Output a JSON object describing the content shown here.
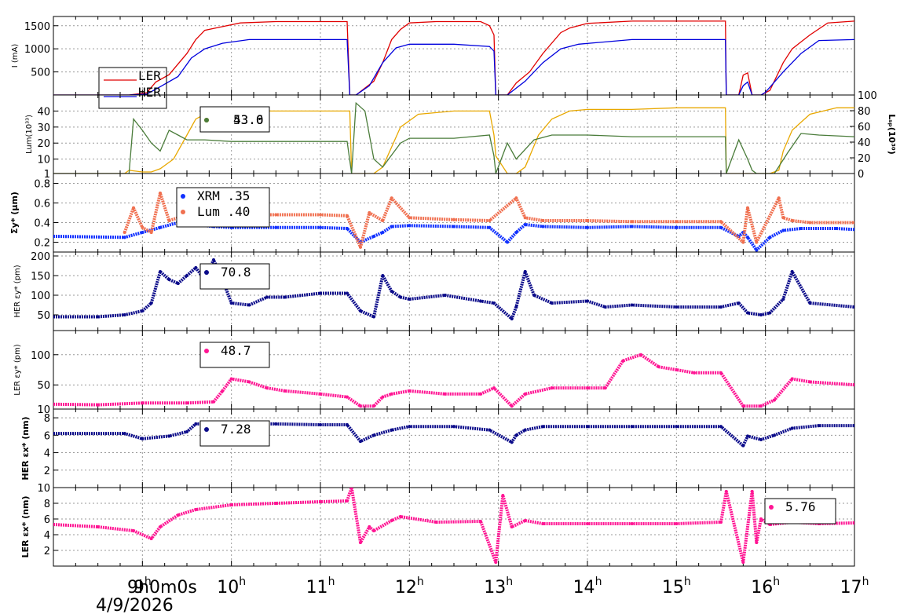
{
  "chart_data": [
    {
      "id": "current",
      "type": "line",
      "ylabel": "I (mA)",
      "yticks": [
        "500",
        "1000",
        "1500"
      ],
      "ylim": [
        0,
        1700
      ],
      "grid": true,
      "legend": {
        "placement": "bottom-left",
        "entries": [
          "LER",
          "HER"
        ]
      },
      "series": [
        {
          "name": "LER",
          "color": "#e00000",
          "x": [
            8.0,
            8.85,
            9.05,
            9.15,
            9.3,
            9.5,
            9.6,
            9.7,
            9.9,
            10.1,
            10.5,
            11.0,
            11.3,
            11.33,
            11.4,
            11.6,
            11.65,
            11.7,
            11.8,
            11.9,
            12.0,
            12.3,
            12.8,
            12.9,
            12.95,
            12.97,
            13.1,
            13.2,
            13.35,
            13.5,
            13.7,
            13.8,
            14.0,
            14.5,
            15.0,
            15.55,
            15.56,
            15.7,
            15.75,
            15.8,
            15.85,
            15.95,
            16.05,
            16.2,
            16.3,
            16.5,
            16.7,
            17.0
          ],
          "values": [
            0,
            0,
            50,
            280,
            440,
            900,
            1200,
            1400,
            1480,
            1560,
            1590,
            1590,
            1590,
            0,
            0,
            300,
            500,
            700,
            1200,
            1420,
            1560,
            1590,
            1590,
            1500,
            1300,
            0,
            0,
            260,
            500,
            900,
            1350,
            1450,
            1550,
            1600,
            1600,
            1600,
            0,
            0,
            430,
            480,
            0,
            0,
            100,
            700,
            1000,
            1300,
            1560,
            1600
          ]
        },
        {
          "name": "HER",
          "color": "#0000dd",
          "x": [
            8.0,
            8.85,
            9.05,
            9.2,
            9.4,
            9.55,
            9.7,
            9.9,
            10.2,
            10.5,
            11.0,
            11.3,
            11.33,
            11.4,
            11.55,
            11.7,
            11.85,
            12.0,
            12.5,
            12.9,
            12.95,
            12.97,
            13.1,
            13.3,
            13.5,
            13.7,
            13.9,
            14.5,
            15.0,
            15.55,
            15.56,
            15.7,
            15.75,
            15.8,
            15.85,
            15.95,
            16.0,
            16.2,
            16.4,
            16.6,
            17.0
          ],
          "values": [
            0,
            0,
            20,
            180,
            400,
            800,
            1000,
            1120,
            1200,
            1200,
            1200,
            1200,
            0,
            0,
            200,
            700,
            1020,
            1100,
            1100,
            1050,
            950,
            0,
            0,
            300,
            700,
            1000,
            1100,
            1200,
            1200,
            1200,
            0,
            0,
            200,
            280,
            0,
            0,
            60,
            500,
            900,
            1180,
            1200
          ]
        }
      ]
    },
    {
      "id": "luminosity",
      "type": "line",
      "ylabel": "Lum(10³³)",
      "ylabel_right": "Lₛₚ(10³⁰)",
      "yticks": [
        "1",
        "10",
        "20",
        "30",
        "40"
      ],
      "yticks_right": [
        "0",
        "20",
        "40",
        "60",
        "80",
        "100"
      ],
      "ylim": [
        1,
        50
      ],
      "grid": true,
      "legend": {
        "placement": "top-left",
        "entries": [
          "43.0",
          "53.6"
        ]
      },
      "series": [
        {
          "name": "43.0",
          "color": "#e8a800",
          "x": [
            8.0,
            8.8,
            8.85,
            9.0,
            9.1,
            9.2,
            9.35,
            9.5,
            9.6,
            9.7,
            9.8,
            10.0,
            10.5,
            11.0,
            11.33,
            11.35,
            11.4,
            11.6,
            11.7,
            11.9,
            12.1,
            12.5,
            12.9,
            12.95,
            12.97,
            13.1,
            13.2,
            13.3,
            13.45,
            13.6,
            13.8,
            14.0,
            14.5,
            15.0,
            15.55,
            15.56,
            15.8,
            16.05,
            16.15,
            16.2,
            16.3,
            16.5,
            16.8,
            17.0
          ],
          "values": [
            1,
            1,
            3,
            2,
            2,
            4,
            10,
            25,
            35,
            38,
            40,
            40,
            40,
            40,
            40,
            1,
            1,
            1,
            5,
            30,
            38,
            40,
            40,
            25,
            12,
            1,
            1,
            5,
            25,
            35,
            40,
            41,
            41,
            42,
            42,
            1,
            1,
            1,
            3,
            15,
            28,
            38,
            42,
            42
          ]
        },
        {
          "name": "53.6",
          "color": "#4a7c3a",
          "x": [
            8.0,
            8.85,
            8.9,
            9.0,
            9.1,
            9.2,
            9.3,
            9.4,
            9.5,
            9.7,
            10.0,
            10.5,
            11.0,
            11.3,
            11.35,
            11.4,
            11.5,
            11.6,
            11.7,
            11.9,
            12.0,
            12.5,
            12.9,
            12.95,
            12.97,
            13.1,
            13.2,
            13.4,
            13.6,
            14.0,
            14.5,
            15.0,
            15.55,
            15.56,
            15.7,
            15.8,
            15.85,
            15.9,
            16.1,
            16.25,
            16.4,
            16.6,
            17.0
          ],
          "values": [
            1,
            1,
            35,
            28,
            20,
            15,
            28,
            25,
            22,
            22,
            21,
            21,
            21,
            21,
            1,
            45,
            40,
            10,
            5,
            20,
            23,
            23,
            25,
            12,
            1,
            20,
            10,
            22,
            25,
            25,
            24,
            24,
            24,
            1,
            22,
            10,
            3,
            1,
            1,
            14,
            26,
            25,
            24
          ]
        }
      ]
    },
    {
      "id": "beamsize",
      "type": "scatter",
      "ylabel": "Σy* (µm)",
      "yticks": [
        "0.2",
        "0.4",
        "0.6",
        "0.8"
      ],
      "ylim": [
        0.1,
        0.9
      ],
      "grid": true,
      "legend": {
        "placement": "top-left",
        "entries": [
          "XRM  .35",
          "Lum  .40"
        ]
      },
      "series": [
        {
          "name": "XRM  .35",
          "color": "#1030ff",
          "x": [
            8.0,
            8.8,
            9.0,
            9.2,
            9.4,
            9.6,
            9.8,
            10.0,
            10.5,
            11.0,
            11.3,
            11.45,
            11.6,
            11.7,
            11.8,
            12.0,
            12.5,
            12.9,
            13.1,
            13.2,
            13.3,
            13.5,
            14.0,
            14.5,
            15.0,
            15.5,
            15.7,
            15.75,
            15.8,
            15.9,
            16.05,
            16.2,
            16.4,
            16.8,
            17.0
          ],
          "values": [
            0.26,
            0.25,
            0.3,
            0.35,
            0.4,
            0.38,
            0.36,
            0.35,
            0.35,
            0.35,
            0.34,
            0.2,
            0.26,
            0.3,
            0.36,
            0.37,
            0.36,
            0.35,
            0.2,
            0.3,
            0.38,
            0.36,
            0.35,
            0.36,
            0.35,
            0.35,
            0.26,
            0.3,
            0.25,
            0.12,
            0.25,
            0.32,
            0.34,
            0.34,
            0.33
          ]
        },
        {
          "name": "Lum  .40",
          "color": "#f07050",
          "x": [
            8.8,
            8.9,
            9.0,
            9.1,
            9.2,
            9.3,
            9.4,
            9.6,
            9.8,
            10.0,
            10.5,
            11.0,
            11.3,
            11.45,
            11.55,
            11.7,
            11.8,
            12.0,
            12.5,
            12.9,
            13.2,
            13.3,
            13.5,
            14.0,
            14.5,
            15.0,
            15.5,
            15.75,
            15.8,
            15.9,
            16.15,
            16.2,
            16.3,
            16.5,
            17.0
          ],
          "values": [
            0.3,
            0.55,
            0.35,
            0.3,
            0.7,
            0.42,
            0.45,
            0.46,
            0.48,
            0.48,
            0.48,
            0.48,
            0.47,
            0.15,
            0.5,
            0.42,
            0.65,
            0.45,
            0.43,
            0.42,
            0.65,
            0.45,
            0.42,
            0.42,
            0.41,
            0.41,
            0.41,
            0.2,
            0.55,
            0.2,
            0.65,
            0.45,
            0.42,
            0.4,
            0.4
          ]
        }
      ]
    },
    {
      "id": "her_ey",
      "type": "scatter",
      "ylabel": "HER εy* (pm)",
      "yticks": [
        "50",
        "100",
        "150",
        "200"
      ],
      "ylim": [
        10,
        210
      ],
      "grid": true,
      "legend": {
        "placement": "top-left",
        "entries": [
          "70.8"
        ]
      },
      "series": [
        {
          "name": "70.8",
          "color": "#0b0b8a",
          "x": [
            8.0,
            8.5,
            8.8,
            9.0,
            9.1,
            9.2,
            9.3,
            9.4,
            9.5,
            9.6,
            9.7,
            9.8,
            9.9,
            10.0,
            10.2,
            10.4,
            10.6,
            11.0,
            11.3,
            11.45,
            11.6,
            11.7,
            11.8,
            11.9,
            12.0,
            12.4,
            12.8,
            12.95,
            13.15,
            13.2,
            13.3,
            13.4,
            13.6,
            14.0,
            14.2,
            14.5,
            15.0,
            15.5,
            15.7,
            15.8,
            15.95,
            16.05,
            16.2,
            16.3,
            16.5,
            17.0
          ],
          "values": [
            45,
            45,
            50,
            60,
            80,
            160,
            140,
            130,
            150,
            170,
            140,
            190,
            140,
            80,
            75,
            95,
            95,
            105,
            105,
            60,
            45,
            150,
            110,
            95,
            90,
            100,
            85,
            80,
            40,
            70,
            160,
            100,
            80,
            85,
            70,
            75,
            70,
            70,
            80,
            55,
            50,
            55,
            90,
            160,
            80,
            70
          ]
        }
      ]
    },
    {
      "id": "ler_ey",
      "type": "scatter",
      "ylabel": "LER εy* (pm)",
      "yticks": [
        "10",
        "50",
        "100"
      ],
      "ylim": [
        10,
        140
      ],
      "grid": true,
      "legend": {
        "placement": "top-left",
        "entries": [
          "48.7"
        ]
      },
      "series": [
        {
          "name": "48.7",
          "color": "#ff1493",
          "x": [
            8.0,
            8.5,
            9.0,
            9.5,
            9.8,
            9.9,
            10.0,
            10.2,
            10.4,
            10.6,
            11.0,
            11.3,
            11.45,
            11.6,
            11.7,
            11.8,
            12.0,
            12.4,
            12.8,
            12.95,
            13.15,
            13.3,
            13.6,
            14.0,
            14.2,
            14.4,
            14.6,
            14.8,
            15.0,
            15.2,
            15.5,
            15.75,
            15.95,
            16.1,
            16.3,
            16.5,
            17.0
          ],
          "values": [
            18,
            17,
            20,
            20,
            22,
            40,
            60,
            55,
            45,
            40,
            35,
            30,
            15,
            15,
            30,
            35,
            40,
            35,
            35,
            45,
            15,
            35,
            45,
            45,
            45,
            90,
            100,
            80,
            75,
            70,
            70,
            15,
            15,
            25,
            60,
            55,
            50
          ]
        }
      ]
    },
    {
      "id": "her_ex",
      "type": "scatter",
      "ylabel": "HER εx* (nm)",
      "yticks": [
        "2",
        "4",
        "6",
        "8"
      ],
      "ylim": [
        0,
        9
      ],
      "grid": true,
      "legend": {
        "placement": "top-left",
        "entries": [
          "7.28"
        ]
      },
      "series": [
        {
          "name": "7.28",
          "color": "#0b0b8a",
          "x": [
            8.0,
            8.8,
            9.0,
            9.3,
            9.5,
            9.6,
            10.0,
            10.5,
            11.0,
            11.3,
            11.45,
            11.6,
            11.8,
            12.0,
            12.5,
            12.9,
            13.15,
            13.2,
            13.3,
            13.5,
            14.0,
            14.5,
            15.0,
            15.5,
            15.75,
            15.8,
            15.95,
            16.1,
            16.3,
            16.6,
            17.0
          ],
          "values": [
            6.2,
            6.2,
            5.6,
            5.9,
            6.4,
            7.3,
            7.3,
            7.3,
            7.2,
            7.2,
            5.3,
            6.0,
            6.6,
            7.0,
            7.0,
            6.6,
            5.2,
            6.0,
            6.6,
            7.0,
            7.0,
            7.0,
            7.0,
            7.0,
            4.8,
            5.9,
            5.5,
            6.0,
            6.8,
            7.1,
            7.1
          ]
        }
      ]
    },
    {
      "id": "ler_ex",
      "type": "scatter",
      "ylabel": "LER εx* (nm)",
      "yticks": [
        "2",
        "4",
        "6",
        "8",
        "10"
      ],
      "ylim": [
        0,
        10
      ],
      "grid": true,
      "legend": {
        "placement": "top-right",
        "entries": [
          "5.76"
        ]
      },
      "series": [
        {
          "name": "5.76",
          "color": "#ff1493",
          "x": [
            8.0,
            8.5,
            8.9,
            9.1,
            9.2,
            9.4,
            9.6,
            10.0,
            10.5,
            11.0,
            11.3,
            11.35,
            11.45,
            11.55,
            11.6,
            11.8,
            11.9,
            12.3,
            12.8,
            12.97,
            13.05,
            13.15,
            13.3,
            13.5,
            14.0,
            14.5,
            15.0,
            15.5,
            15.56,
            15.75,
            15.85,
            15.9,
            15.95,
            16.05,
            16.3,
            16.6,
            17.0
          ],
          "values": [
            5.3,
            5.0,
            4.5,
            3.5,
            5.0,
            6.5,
            7.2,
            7.8,
            8.0,
            8.2,
            8.3,
            10.0,
            3.0,
            5.0,
            4.5,
            5.8,
            6.3,
            5.6,
            5.7,
            0.5,
            9.0,
            5.0,
            5.8,
            5.4,
            5.4,
            5.4,
            5.4,
            5.6,
            9.5,
            0.5,
            9.5,
            3.0,
            6.0,
            5.3,
            5.6,
            5.4,
            5.5
          ]
        }
      ]
    }
  ],
  "x_axis": {
    "type": "time",
    "range": [
      8.0,
      17.0
    ],
    "ticks": [
      {
        "value": 9,
        "base": "9",
        "sup": "h"
      },
      {
        "value": 10,
        "base": "10",
        "sup": "h"
      },
      {
        "value": 11,
        "base": "11",
        "sup": "h"
      },
      {
        "value": 12,
        "base": "12",
        "sup": "h"
      },
      {
        "value": 13,
        "base": "13",
        "sup": "h"
      },
      {
        "value": 14,
        "base": "14",
        "sup": "h"
      },
      {
        "value": 15,
        "base": "15",
        "sup": "h"
      },
      {
        "value": 16,
        "base": "16",
        "sup": "h"
      },
      {
        "value": 17,
        "base": "17",
        "sup": "h"
      }
    ],
    "start_label": "9h0m0s",
    "date_label": "4/9/2026"
  }
}
